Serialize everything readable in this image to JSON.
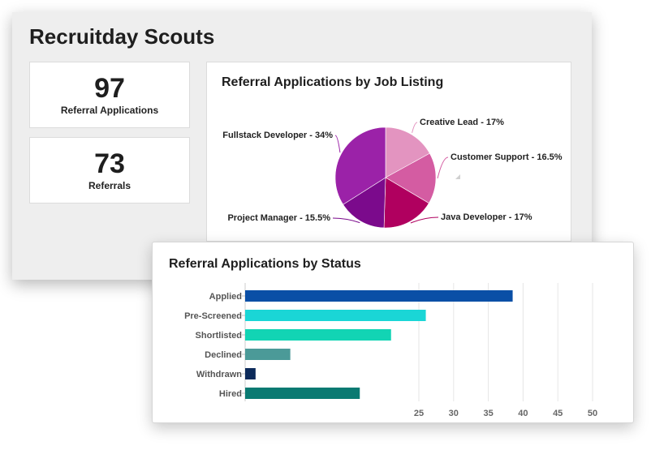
{
  "dashboard": {
    "title": "Recruitday Scouts"
  },
  "stats": [
    {
      "value": "97",
      "label": "Referral Applications"
    },
    {
      "value": "73",
      "label": "Referrals"
    }
  ],
  "chart_data": [
    {
      "type": "pie",
      "title": "Referral Applications by Job Listing",
      "slices": [
        {
          "name": "Creative Lead",
          "label": "Creative Lead - 17%",
          "value": 17,
          "color": "#e394c0"
        },
        {
          "name": "Customer Support",
          "label": "Customer Support - 16.5%",
          "value": 16.5,
          "color": "#d45ca2"
        },
        {
          "name": "Java Developer",
          "label": "Java Developer - 17%",
          "value": 17,
          "color": "#b0005f"
        },
        {
          "name": "Project Manager",
          "label": "Project Manager - 15.5%",
          "value": 15.5,
          "color": "#7b0a8c"
        },
        {
          "name": "Fullstack Developer",
          "label": "Fullstack Developer - 34%",
          "value": 34,
          "color": "#9b22a8"
        }
      ],
      "legend": "none"
    },
    {
      "type": "bar",
      "orientation": "horizontal",
      "title": "Referral Applications by Status",
      "categories": [
        "Applied",
        "Pre-Screened",
        "Shortlisted",
        "Declined",
        "Withdrawn",
        "Hired"
      ],
      "values": [
        38.5,
        26,
        21,
        6.5,
        1.5,
        16.5
      ],
      "colors": [
        "#0a4fa6",
        "#1ad6d6",
        "#12d4b4",
        "#4b9a98",
        "#0c2a5a",
        "#0a7a72"
      ],
      "x_ticks": [
        25,
        30,
        35,
        40,
        45,
        50
      ],
      "xlim": [
        0,
        50
      ],
      "grid": true
    }
  ]
}
